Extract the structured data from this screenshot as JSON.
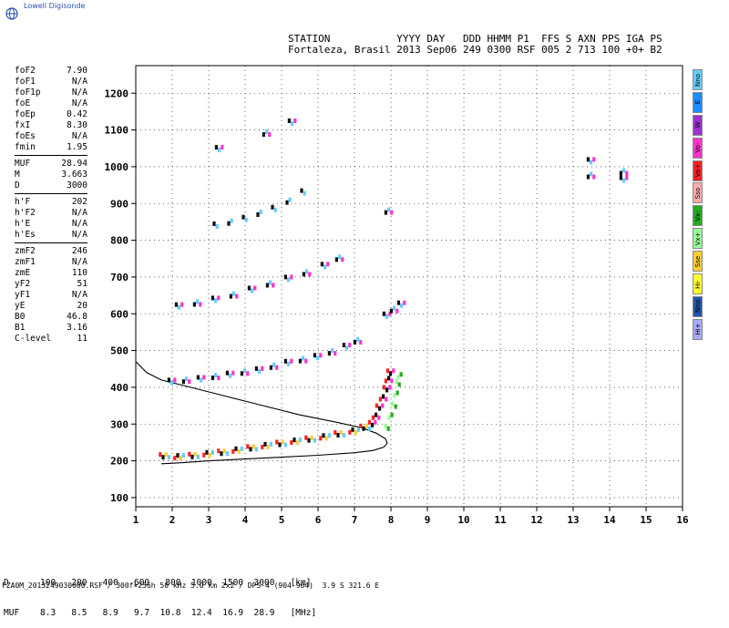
{
  "brand": {
    "label": "Lowell Digisonde",
    "icon": "globe-icon"
  },
  "header": {
    "line1": "STATION           YYYY DAY   DDD HHMM P1  FFS S AXN PPS IGA PS",
    "line2": "Fortaleza, Brasil 2013 Sep06 249 0300 RSF 005 2 713 100 +0+ B2"
  },
  "params_groups": [
    [
      {
        "k": "foF2",
        "v": "7.90"
      },
      {
        "k": "foF1",
        "v": "N/A"
      },
      {
        "k": "foF1p",
        "v": "N/A"
      },
      {
        "k": "foE",
        "v": "N/A"
      },
      {
        "k": "foEp",
        "v": "0.42"
      },
      {
        "k": "fxI",
        "v": "8.30"
      },
      {
        "k": "foEs",
        "v": "N/A"
      },
      {
        "k": "fmin",
        "v": "1.95"
      }
    ],
    [
      {
        "k": "MUF",
        "v": "28.94"
      },
      {
        "k": "M",
        "v": "3.663"
      },
      {
        "k": "D",
        "v": "3000"
      }
    ],
    [
      {
        "k": "h'F",
        "v": "202"
      },
      {
        "k": "h'F2",
        "v": "N/A"
      },
      {
        "k": "h'E",
        "v": "N/A"
      },
      {
        "k": "h'Es",
        "v": "N/A"
      }
    ],
    [
      {
        "k": "zmF2",
        "v": "246"
      },
      {
        "k": "zmF1",
        "v": "N/A"
      },
      {
        "k": "zmE",
        "v": "110"
      },
      {
        "k": "yF2",
        "v": "51"
      },
      {
        "k": "yF1",
        "v": "N/A"
      },
      {
        "k": "yE",
        "v": "20"
      },
      {
        "k": "B0",
        "v": "46.8"
      },
      {
        "k": "B1",
        "v": "3.16"
      },
      {
        "k": "C-level",
        "v": "11"
      }
    ]
  ],
  "bottom": {
    "row_d": "D      100   200   400   600   800  1000  1500  3000   [km]",
    "row_muf": "MUF    8.3   8.5   8.9   9.7  10.8  12.4  16.9  28.9   [MHz]"
  },
  "footer": "FZA0M_2013249030000.RSF / 300f×256h 50 kHz 5.0 km 2x2 / DPS-4 (904-904)  3.9 S 321.6 E",
  "legend": [
    {
      "label": "Nno",
      "color": "#66ccff"
    },
    {
      "label": "E",
      "color": "#1a8cff"
    },
    {
      "label": "W",
      "color": "#9933cc"
    },
    {
      "label": "Vo-",
      "color": "#ff33cc"
    },
    {
      "label": "Vo+",
      "color": "#ff2222"
    },
    {
      "label": "Sso",
      "color": "#ffaaaa"
    },
    {
      "label": "Vx-",
      "color": "#22aa22"
    },
    {
      "label": "Vx+",
      "color": "#99ff99"
    },
    {
      "label": "Sse",
      "color": "#ffcc33"
    },
    {
      "label": "Hi-",
      "color": "#ffff33"
    },
    {
      "label": "Nno",
      "color": "#2255aa"
    },
    {
      "label": "Hi+",
      "color": "#aaaaff"
    }
  ],
  "chart_data": {
    "type": "scatter",
    "title": "",
    "xlabel": "",
    "ylabel": "",
    "xlim": [
      1,
      16
    ],
    "ylim": [
      75,
      1275
    ],
    "x_ticks": [
      1,
      2,
      3,
      4,
      5,
      6,
      7,
      8,
      9,
      10,
      11,
      12,
      13,
      14,
      15,
      16
    ],
    "y_ticks": [
      100,
      200,
      300,
      400,
      500,
      600,
      700,
      800,
      900,
      1000,
      1100,
      1200
    ],
    "grid": "dotted",
    "traces": [
      {
        "name": "1st hop O-trace",
        "colors": [
          "#ff2222",
          "#111111",
          "#ffcc33",
          "#66ccff"
        ],
        "points": [
          [
            1.8,
            212
          ],
          [
            2.2,
            210
          ],
          [
            2.6,
            213
          ],
          [
            3.0,
            218
          ],
          [
            3.4,
            222
          ],
          [
            3.8,
            228
          ],
          [
            4.2,
            234
          ],
          [
            4.6,
            240
          ],
          [
            5.0,
            246
          ],
          [
            5.4,
            252
          ],
          [
            5.8,
            258
          ],
          [
            6.2,
            264
          ],
          [
            6.6,
            272
          ],
          [
            7.0,
            280
          ],
          [
            7.3,
            290
          ]
        ]
      },
      {
        "name": "1st hop upper branch",
        "colors": [
          "#ff2222",
          "#111111",
          "#ff33cc"
        ],
        "points": [
          [
            7.5,
            300
          ],
          [
            7.6,
            320
          ],
          [
            7.7,
            345
          ],
          [
            7.8,
            370
          ],
          [
            7.9,
            395
          ],
          [
            7.95,
            420
          ],
          [
            8.0,
            440
          ]
        ]
      },
      {
        "name": "X-trace",
        "colors": [
          "#99ff99",
          "#22aa22"
        ],
        "points": [
          [
            7.9,
            290
          ],
          [
            8.0,
            320
          ],
          [
            8.1,
            350
          ],
          [
            8.15,
            380
          ],
          [
            8.2,
            410
          ],
          [
            8.25,
            430
          ]
        ]
      },
      {
        "name": "2nd hop",
        "colors": [
          "#111111",
          "#66ccff",
          "#ff33cc"
        ],
        "points": [
          [
            2.0,
            415
          ],
          [
            2.4,
            418
          ],
          [
            2.8,
            422
          ],
          [
            3.2,
            428
          ],
          [
            3.6,
            434
          ],
          [
            4.0,
            440
          ],
          [
            4.4,
            446
          ],
          [
            4.8,
            456
          ],
          [
            5.2,
            466
          ],
          [
            5.6,
            474
          ],
          [
            6.0,
            482
          ],
          [
            6.4,
            495
          ],
          [
            6.8,
            510
          ],
          [
            7.1,
            525
          ]
        ]
      },
      {
        "name": "3rd hop",
        "colors": [
          "#111111",
          "#66ccff",
          "#ff33cc"
        ],
        "points": [
          [
            2.2,
            620
          ],
          [
            2.7,
            628
          ],
          [
            3.2,
            638
          ],
          [
            3.7,
            650
          ],
          [
            4.2,
            665
          ],
          [
            4.7,
            680
          ],
          [
            5.2,
            695
          ],
          [
            5.7,
            710
          ],
          [
            6.2,
            730
          ],
          [
            6.6,
            750
          ],
          [
            7.9,
            595
          ],
          [
            8.1,
            610
          ],
          [
            8.3,
            625
          ]
        ]
      },
      {
        "name": "4th hop",
        "colors": [
          "#111111",
          "#66ccff"
        ],
        "points": [
          [
            3.2,
            840
          ],
          [
            3.6,
            848
          ],
          [
            4.0,
            858
          ],
          [
            4.4,
            872
          ],
          [
            4.8,
            885
          ],
          [
            5.2,
            905
          ],
          [
            5.6,
            930
          ]
        ]
      },
      {
        "name": "5th hop",
        "colors": [
          "#111111",
          "#66ccff",
          "#ff33cc"
        ],
        "points": [
          [
            3.3,
            1048
          ],
          [
            4.6,
            1090
          ],
          [
            5.3,
            1120
          ],
          [
            7.95,
            878
          ],
          [
            13.5,
            1015
          ],
          [
            13.5,
            975
          ],
          [
            14.4,
            965
          ],
          [
            14.4,
            985
          ]
        ]
      }
    ],
    "profile": {
      "name": "Electron density profile",
      "points": [
        [
          1.0,
          470
        ],
        [
          1.3,
          440
        ],
        [
          1.7,
          420
        ],
        [
          2.5,
          400
        ],
        [
          3.5,
          375
        ],
        [
          4.5,
          350
        ],
        [
          5.5,
          325
        ],
        [
          6.5,
          305
        ],
        [
          7.2,
          290
        ],
        [
          7.6,
          275
        ],
        [
          7.85,
          260
        ],
        [
          7.9,
          248
        ],
        [
          7.8,
          237
        ],
        [
          7.5,
          228
        ],
        [
          7.0,
          222
        ],
        [
          6.0,
          215
        ],
        [
          5.0,
          210
        ],
        [
          4.0,
          205
        ],
        [
          3.0,
          200
        ],
        [
          2.3,
          195
        ],
        [
          1.9,
          193
        ],
        [
          1.7,
          192
        ]
      ]
    }
  }
}
